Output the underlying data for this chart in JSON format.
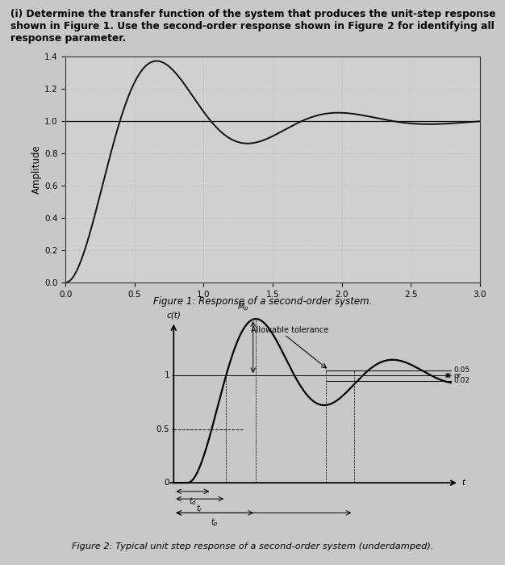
{
  "header_line1": "(i) Determine the transfer function of the system that produces the unit-step response",
  "header_line2": "shown in Figure 1. Use the second-order response shown in Figure 2 for identifying all",
  "header_line3": "response parameter.",
  "fig1_title": "Figure 1: Response of a second-order system.",
  "fig2_title": "Figure 2: Typical unit step response of a second-order system (underdamped).",
  "fig1_ylabel": "Amplitude",
  "fig1_xlim": [
    0,
    3
  ],
  "fig1_ylim": [
    0,
    1.4
  ],
  "fig1_xticks": [
    0,
    0.5,
    1,
    1.5,
    2,
    2.5,
    3
  ],
  "fig1_yticks": [
    0,
    0.2,
    0.4,
    0.6,
    0.8,
    1.0,
    1.2,
    1.4
  ],
  "zeta": 0.3,
  "wn": 5.0,
  "bg_color": "#c8c8c8",
  "plot_bg_color": "#d0d0d0",
  "line_color": "#111111",
  "grid_color": "#aaaaaa"
}
